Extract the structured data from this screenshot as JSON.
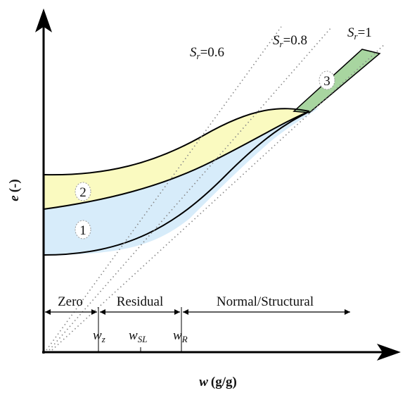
{
  "y_axis": {
    "symbol": "e",
    "unit": "(-)"
  },
  "x_axis": {
    "symbol": "w",
    "unit": "(g/g)"
  },
  "saturation_lines": [
    {
      "symbol": "S",
      "subscript": "r",
      "value": "=0.6"
    },
    {
      "symbol": "S",
      "subscript": "r",
      "value": "=0.8"
    },
    {
      "symbol": "S",
      "subscript": "r",
      "value": "=1"
    }
  ],
  "zones": [
    "Zero",
    "Residual",
    "Normal/Structural"
  ],
  "water_contents": [
    {
      "symbol": "w",
      "subscript": "z"
    },
    {
      "symbol": "w",
      "subscript": "SL"
    },
    {
      "symbol": "w",
      "subscript": "R"
    }
  ],
  "regions": [
    "1",
    "2",
    "3"
  ]
}
